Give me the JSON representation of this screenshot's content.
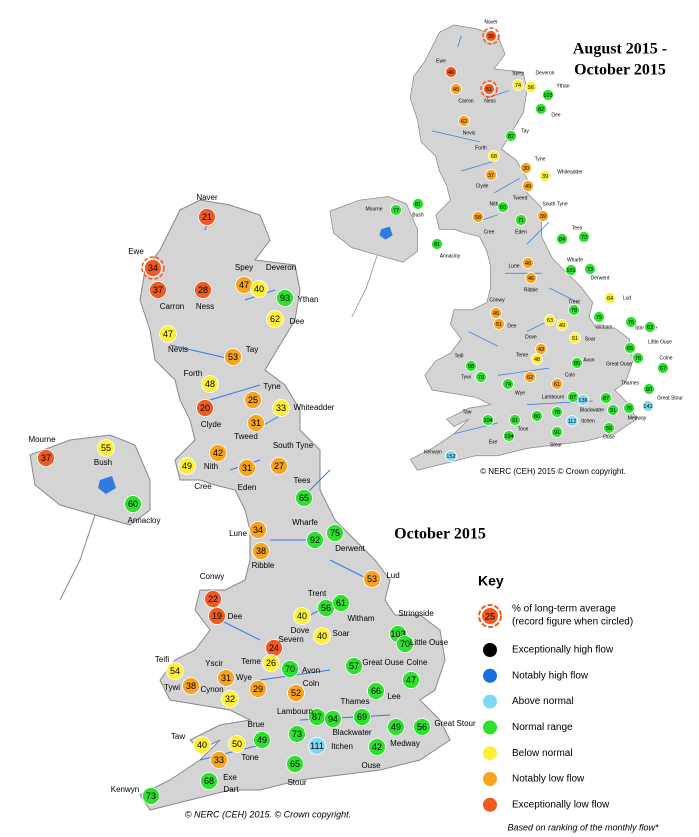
{
  "main_title": "October 2015",
  "inset_title": [
    "August 2015 -",
    "October 2015"
  ],
  "main_copyright": "© NERC (CEH) 2015. © Crown copyright.",
  "inset_copyright": "© NERC (CEH) 2015 © Crown copyright.",
  "footnote": "Based on ranking of the monthly flow*",
  "key": {
    "title": "Key",
    "example_value": 25,
    "example_color": "#f05a1e",
    "example_lines": [
      "% of long-term average",
      "(record figure when circled)"
    ],
    "items": [
      {
        "label": "Exceptionally high flow",
        "color": "#000000"
      },
      {
        "label": "Notably high flow",
        "color": "#1a6fe0"
      },
      {
        "label": "Above normal",
        "color": "#7fd8f5"
      },
      {
        "label": "Normal range",
        "color": "#2de02d"
      },
      {
        "label": "Below normal",
        "color": "#ffef3a"
      },
      {
        "label": "Notably low flow",
        "color": "#f7a31c"
      },
      {
        "label": "Exceptionally low flow",
        "color": "#f05a1e"
      }
    ]
  },
  "main_stations": [
    {
      "label": "Naver",
      "value": 21,
      "color": "#f05a1e"
    },
    {
      "label": "Ewe",
      "value": 34,
      "color": "#f05a1e",
      "record": true
    },
    {
      "label": "Carron",
      "value": 37,
      "color": "#f05a1e"
    },
    {
      "label": "Ness",
      "value": 28,
      "color": "#f05a1e"
    },
    {
      "label": "Spey",
      "value": 47,
      "color": "#f7a31c"
    },
    {
      "label": "Deveron",
      "value": 40,
      "color": "#ffef3a"
    },
    {
      "label": "Ythan",
      "value": 93,
      "color": "#2de02d"
    },
    {
      "label": "Dee",
      "value": 62,
      "color": "#ffef3a"
    },
    {
      "label": "Nevis",
      "value": 47,
      "color": "#ffef3a"
    },
    {
      "label": "Tay",
      "value": 53,
      "color": "#f7a31c"
    },
    {
      "label": "Forth",
      "value": 48,
      "color": "#ffef3a"
    },
    {
      "label": "Clyde",
      "value": 20,
      "color": "#f05a1e"
    },
    {
      "label": "Tyne",
      "value": 25,
      "color": "#f7a31c"
    },
    {
      "label": "Whiteadder",
      "value": 33,
      "color": "#ffef3a"
    },
    {
      "label": "Tweed",
      "value": 31,
      "color": "#f7a31c"
    },
    {
      "label": "Nith",
      "value": 42,
      "color": "#f7a31c"
    },
    {
      "label": "Cree",
      "value": 49,
      "color": "#ffef3a"
    },
    {
      "label": "Eden",
      "value": 31,
      "color": "#f7a31c"
    },
    {
      "label": "South Tyne",
      "value": 27,
      "color": "#f7a31c"
    },
    {
      "label": "Tees",
      "value": 65,
      "color": "#2de02d"
    },
    {
      "label": "Mourne",
      "value": 37,
      "color": "#f05a1e"
    },
    {
      "label": "Bush",
      "value": 55,
      "color": "#ffef3a"
    },
    {
      "label": "Annacloy",
      "value": 60,
      "color": "#2de02d"
    },
    {
      "label": "Lune",
      "value": 34,
      "color": "#f7a31c"
    },
    {
      "label": "Wharfe",
      "value": 92,
      "color": "#2de02d"
    },
    {
      "label": "Derwent",
      "value": 75,
      "color": "#2de02d"
    },
    {
      "label": "Ribble",
      "value": 38,
      "color": "#f7a31c"
    },
    {
      "label": "Lud",
      "value": 53,
      "color": "#f7a31c"
    },
    {
      "label": "Conwy",
      "value": 22,
      "color": "#f05a1e"
    },
    {
      "label": "Dee",
      "value": 19,
      "color": "#f05a1e"
    },
    {
      "label": "Dove",
      "value": 40,
      "color": "#ffef3a"
    },
    {
      "label": "Trent",
      "value": 56,
      "color": "#2de02d"
    },
    {
      "label": "Witham",
      "value": 61,
      "color": "#2de02d"
    },
    {
      "label": "Severn",
      "value": 24,
      "color": "#f05a1e"
    },
    {
      "label": "Soar",
      "value": 40,
      "color": "#ffef3a"
    },
    {
      "label": "Stringside",
      "value": 103,
      "color": "#2de02d"
    },
    {
      "label": "Little Ouse",
      "value": 70,
      "color": "#2de02d"
    },
    {
      "label": "Teifi",
      "value": 54,
      "color": "#ffef3a"
    },
    {
      "label": "Yscir",
      "value": 31,
      "color": "#f7a31c"
    },
    {
      "label": "Teme",
      "value": 26,
      "color": "#ffef3a"
    },
    {
      "label": "Avon",
      "value": 70,
      "color": "#2de02d"
    },
    {
      "label": "Great Ouse",
      "value": 57,
      "color": "#2de02d"
    },
    {
      "label": "Colne",
      "value": 47,
      "color": "#2de02d"
    },
    {
      "label": "Tywi",
      "value": 38,
      "color": "#f7a31c"
    },
    {
      "label": "Wye",
      "value": 29,
      "color": "#f7a31c"
    },
    {
      "label": "Cynon",
      "value": 32,
      "color": "#ffef3a"
    },
    {
      "label": "Coln",
      "value": 52,
      "color": "#f7a31c"
    },
    {
      "label": "Lee",
      "value": 66,
      "color": "#2de02d"
    },
    {
      "label": "Thames",
      "value": 69,
      "color": "#2de02d"
    },
    {
      "label": "Lambourn",
      "value": 87,
      "color": "#2de02d"
    },
    {
      "label": "Blackwater",
      "value": 94,
      "color": "#2de02d"
    },
    {
      "label": "Medway",
      "value": 49,
      "color": "#2de02d"
    },
    {
      "label": "Great Stour",
      "value": 56,
      "color": "#2de02d"
    },
    {
      "label": "Brue",
      "value": 73,
      "color": "#2de02d"
    },
    {
      "label": "Itchen",
      "value": 111,
      "color": "#7fd8f5"
    },
    {
      "label": "Ouse",
      "value": 42,
      "color": "#2de02d"
    },
    {
      "label": "Taw",
      "value": 40,
      "color": "#ffef3a"
    },
    {
      "label": "Tone",
      "value": 50,
      "color": "#ffef3a"
    },
    {
      "value": 49,
      "color": "#2de02d"
    },
    {
      "label": "Dart",
      "value": 33,
      "color": "#f7a31c"
    },
    {
      "label": "Stour",
      "value": 65,
      "color": "#2de02d"
    },
    {
      "label": "Exe",
      "value": 68,
      "color": "#2de02d"
    },
    {
      "label": "Kenwyn",
      "value": 73,
      "color": "#2de02d"
    }
  ],
  "inset_stations": [
    {
      "label": "Naver",
      "value": 36,
      "color": "#f05a1e",
      "record": true
    },
    {
      "label": "Ewe",
      "value": 46,
      "color": "#f05a1e"
    },
    {
      "label": "Carron",
      "value": 45,
      "color": "#f7a31c"
    },
    {
      "label": "Ness",
      "value": 51,
      "color": "#f05a1e",
      "record": true
    },
    {
      "label": "Spey",
      "value": 74,
      "color": "#ffef3a"
    },
    {
      "label": "Deveron",
      "value": 56,
      "color": "#ffef3a"
    },
    {
      "label": "Ythan",
      "value": 103,
      "color": "#2de02d"
    },
    {
      "label": "Dee",
      "value": 82,
      "color": "#2de02d"
    },
    {
      "label": "Nevis",
      "value": 62,
      "color": "#f7a31c"
    },
    {
      "label": "Tay",
      "value": 82,
      "color": "#2de02d"
    },
    {
      "label": "Forth",
      "value": 68,
      "color": "#ffef3a"
    },
    {
      "label": "Tyne",
      "value": 30,
      "color": "#f7a31c"
    },
    {
      "label": "Whiteadder",
      "value": 39,
      "color": "#ffef3a"
    },
    {
      "label": "Clyde",
      "value": 37,
      "color": "#f7a31c"
    },
    {
      "label": "Tweed",
      "value": 49,
      "color": "#f7a31c"
    },
    {
      "label": "Nith",
      "value": 60,
      "color": "#2de02d"
    },
    {
      "label": "Cree",
      "value": 58,
      "color": "#f7a31c"
    },
    {
      "label": "Eden",
      "value": 71,
      "color": "#2de02d"
    },
    {
      "label": "South Tyne",
      "value": 39,
      "color": "#f7a31c"
    },
    {
      "label": "Tees",
      "value": 84,
      "color": "#2de02d"
    },
    {
      "label": "Mourne",
      "value": 77,
      "color": "#2de02d"
    },
    {
      "label": "Bush",
      "value": 81,
      "color": "#2de02d"
    },
    {
      "label": "Annacloy",
      "value": 81,
      "color": "#2de02d"
    },
    {
      "label": "Lune",
      "value": 46,
      "color": "#f7a31c"
    },
    {
      "label": "Wharfe",
      "value": 101,
      "color": "#2de02d"
    },
    {
      "value": 72,
      "color": "#2de02d"
    },
    {
      "label": "Derwent",
      "value": 73,
      "color": "#2de02d"
    },
    {
      "label": "Ribble",
      "value": 46,
      "color": "#f7a31c"
    },
    {
      "label": "Lud",
      "value": 64,
      "color": "#ffef3a"
    },
    {
      "label": "Conwy",
      "value": 45,
      "color": "#f7a31c"
    },
    {
      "label": "Dee",
      "value": 51,
      "color": "#f7a31c"
    },
    {
      "value": 63,
      "color": "#ffef3a"
    },
    {
      "label": "Trent",
      "value": 78,
      "color": "#2de02d"
    },
    {
      "label": "Witham",
      "value": 75,
      "color": "#2de02d"
    },
    {
      "value": 49,
      "color": "#ffef3a"
    },
    {
      "label": "Dove",
      "value": 43,
      "color": "#f7a31c"
    },
    {
      "label": "Soar",
      "value": 51,
      "color": "#ffef3a"
    },
    {
      "label": "Stringside",
      "value": 76,
      "color": "#2de02d"
    },
    {
      "label": "Little Ouse",
      "value": 63,
      "color": "#2de02d"
    },
    {
      "value": 65,
      "color": "#2de02d"
    },
    {
      "label": "Great Ouse",
      "value": 76,
      "color": "#2de02d"
    },
    {
      "label": "Teifi",
      "value": 98,
      "color": "#2de02d"
    },
    {
      "label": "Tywi",
      "value": 76,
      "color": "#2de02d"
    },
    {
      "label": "Wye",
      "value": 74,
      "color": "#2de02d"
    },
    {
      "label": "Teme",
      "value": 48,
      "color": "#ffef3a"
    },
    {
      "value": 62,
      "color": "#f7a31c"
    },
    {
      "label": "Coln",
      "value": 61,
      "color": "#f7a31c"
    },
    {
      "label": "Avon",
      "value": 85,
      "color": "#2de02d"
    },
    {
      "label": "Colne",
      "value": 67,
      "color": "#2de02d"
    },
    {
      "label": "Thames",
      "value": 80,
      "color": "#2de02d"
    },
    {
      "label": "Lambourn",
      "value": 87,
      "color": "#2de02d"
    },
    {
      "value": 136,
      "color": "#7fd8f5"
    },
    {
      "value": 87,
      "color": "#2de02d"
    },
    {
      "label": "Blackwater",
      "value": 78,
      "color": "#2de02d"
    },
    {
      "label": "Itchen",
      "value": 112,
      "color": "#7fd8f5"
    },
    {
      "value": 91,
      "color": "#2de02d"
    },
    {
      "label": "Medway",
      "value": 76,
      "color": "#2de02d"
    },
    {
      "label": "Great Stour",
      "value": 141,
      "color": "#7fd8f5"
    },
    {
      "label": "Taw",
      "value": 104,
      "color": "#2de02d"
    },
    {
      "value": 91,
      "color": "#2de02d"
    },
    {
      "label": "Tone",
      "value": 86,
      "color": "#2de02d"
    },
    {
      "label": "Exe",
      "value": 104,
      "color": "#2de02d"
    },
    {
      "label": "Stour",
      "value": 91,
      "color": "#2de02d"
    },
    {
      "label": "Ouse",
      "value": 56,
      "color": "#2de02d"
    },
    {
      "label": "Kenwyn",
      "value": 152,
      "color": "#7fd8f5"
    }
  ]
}
